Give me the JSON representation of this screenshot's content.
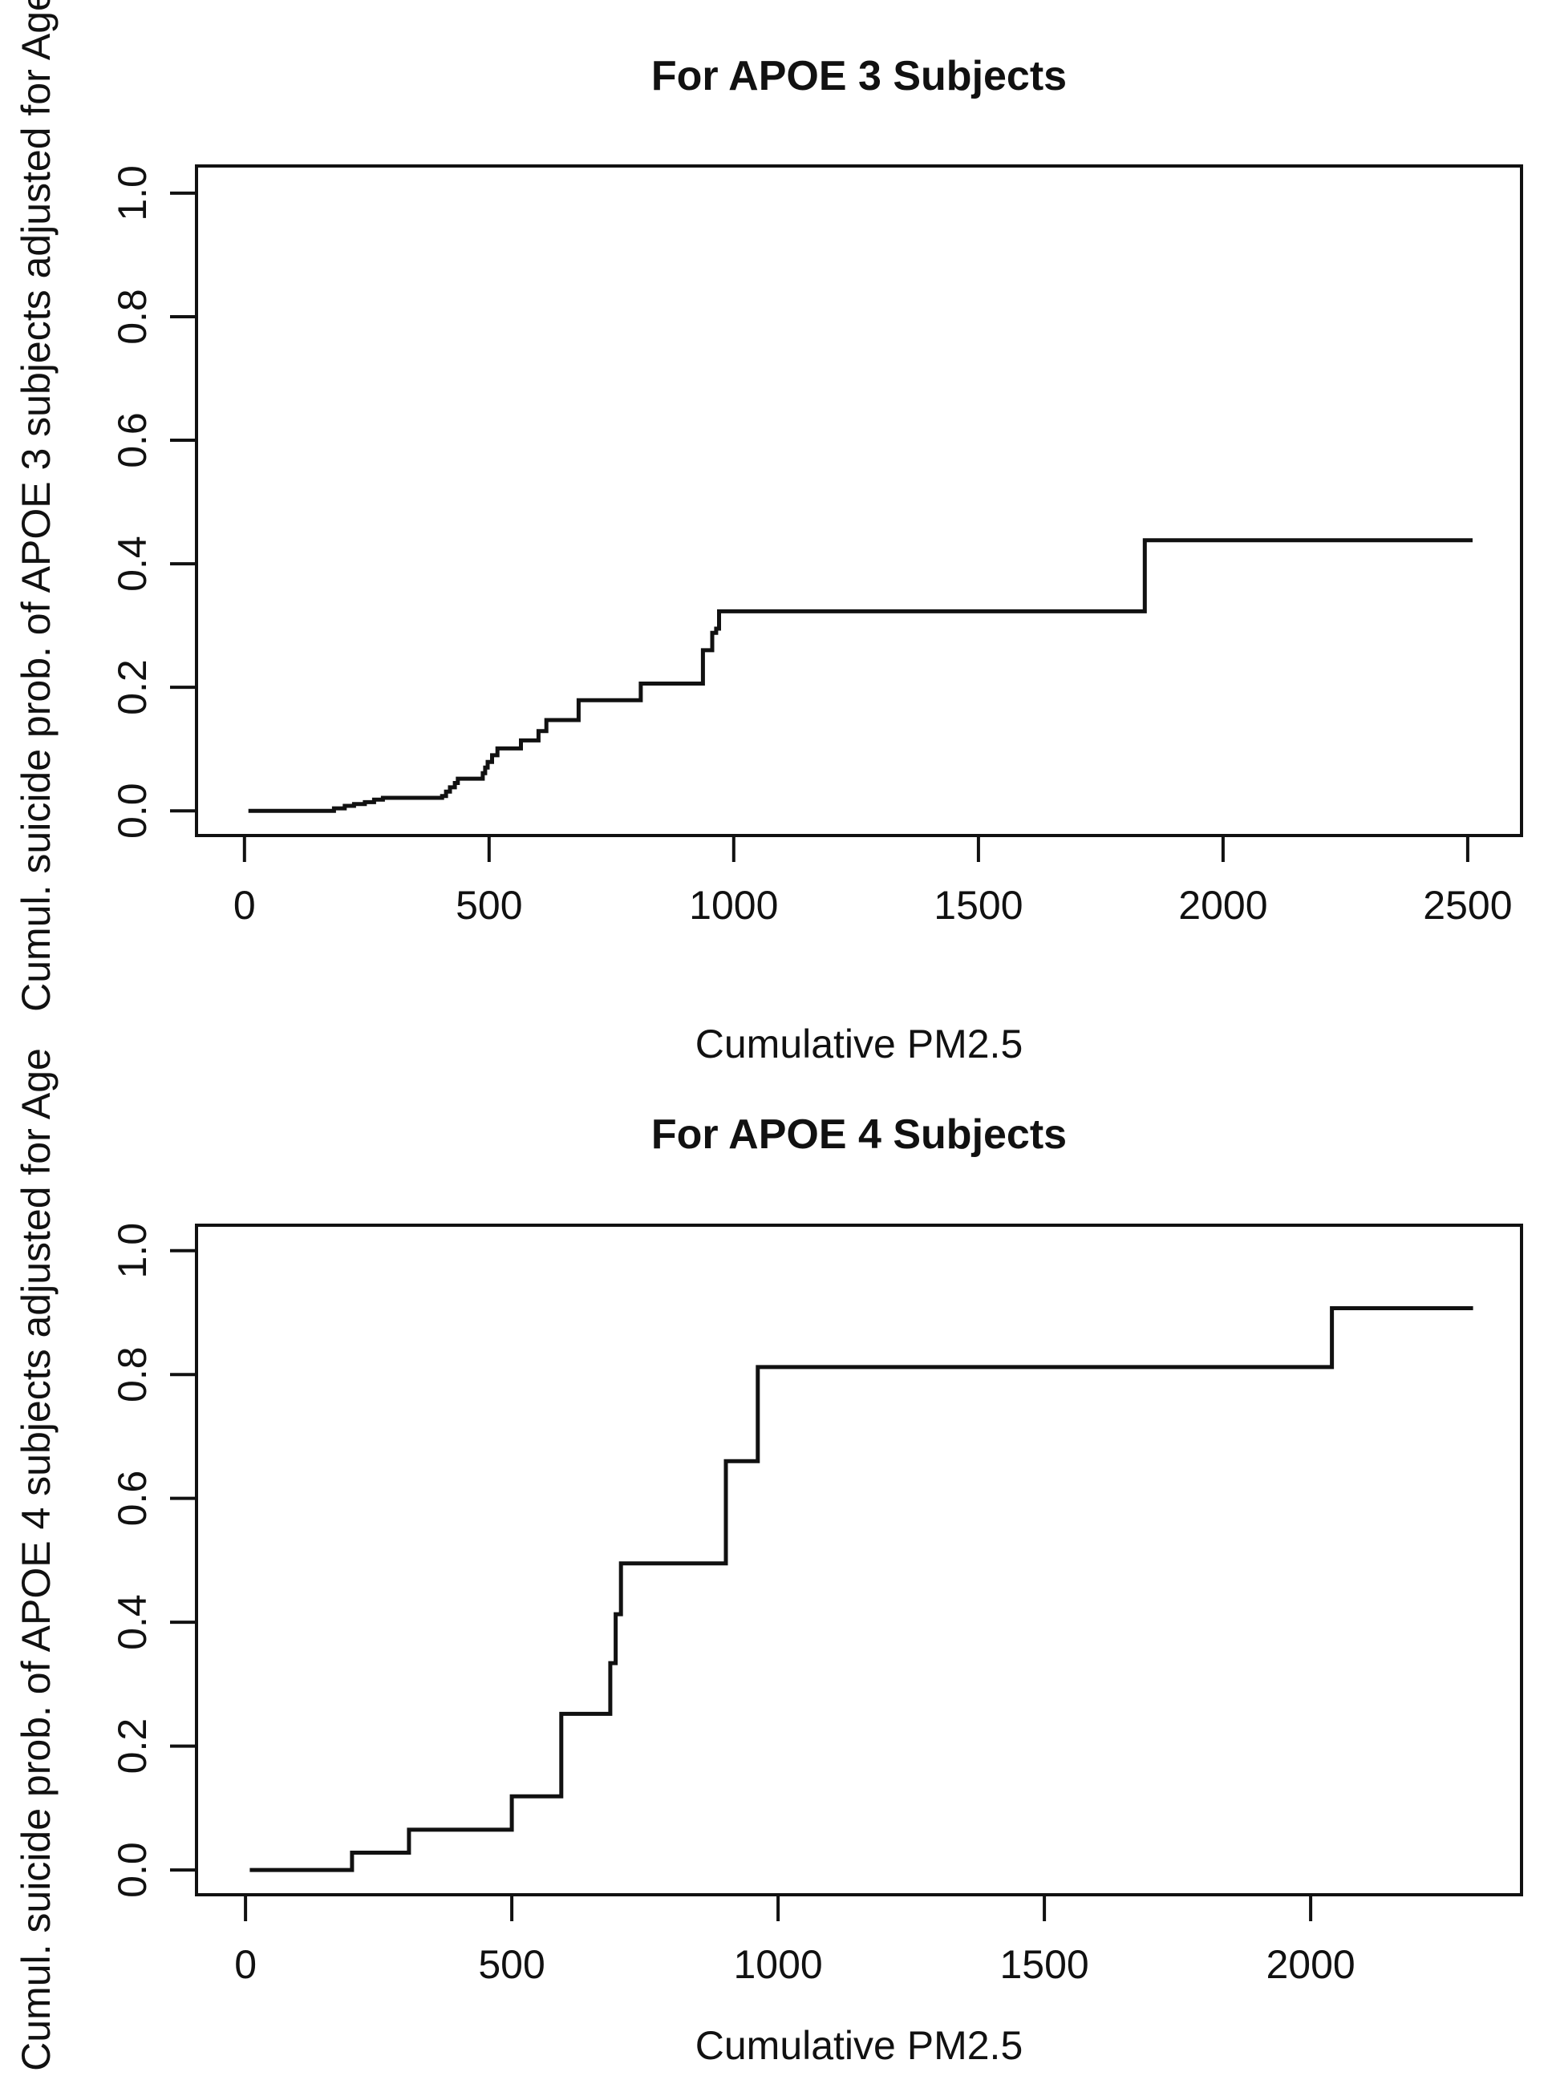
{
  "page": {
    "background": "#ffffff",
    "foreground": "#111111"
  },
  "chart_data": [
    {
      "type": "line",
      "subtype": "step-function",
      "title": "For APOE 3 Subjects",
      "xlabel": "Cumulative PM2.5",
      "ylabel": "Cumul. suicide prob. of APOE 3 subjects adjusted for Age",
      "line_color": "#111111",
      "grid": false,
      "legend": "none",
      "xlim": [
        -98,
        2610
      ],
      "ylim": [
        -0.04,
        1.044
      ],
      "x_ticks": [
        0,
        500,
        1000,
        1500,
        2000,
        2500
      ],
      "x_tick_labels": [
        "0",
        "500",
        "1000",
        "1500",
        "2000",
        "2500"
      ],
      "y_ticks": [
        0.0,
        0.2,
        0.4,
        0.6,
        0.8,
        1.0
      ],
      "y_tick_labels": [
        "0.0",
        "0.2",
        "0.4",
        "0.6",
        "0.8",
        "1.0"
      ],
      "step_points": [
        [
          8,
          0.0
        ],
        [
          183,
          0.004
        ],
        [
          205,
          0.008
        ],
        [
          224,
          0.011
        ],
        [
          246,
          0.014
        ],
        [
          265,
          0.018
        ],
        [
          283,
          0.021
        ],
        [
          404,
          0.024
        ],
        [
          412,
          0.031
        ],
        [
          420,
          0.038
        ],
        [
          430,
          0.045
        ],
        [
          436,
          0.052
        ],
        [
          487,
          0.061
        ],
        [
          492,
          0.07
        ],
        [
          497,
          0.079
        ],
        [
          506,
          0.09
        ],
        [
          517,
          0.101
        ],
        [
          565,
          0.114
        ],
        [
          601,
          0.129
        ],
        [
          617,
          0.147
        ],
        [
          683,
          0.179
        ],
        [
          810,
          0.206
        ],
        [
          937,
          0.26
        ],
        [
          956,
          0.288
        ],
        [
          964,
          0.295
        ],
        [
          970,
          0.323
        ],
        [
          1840,
          0.438
        ]
      ],
      "x_end": 2510
    },
    {
      "type": "line",
      "subtype": "step-function",
      "title": "For APOE 4 Subjects",
      "xlabel": "Cumulative PM2.5",
      "ylabel": "Cumul. suicide prob. of APOE 4 subjects adjusted for Age",
      "line_color": "#111111",
      "grid": false,
      "legend": "none",
      "xlim": [
        -92,
        2396
      ],
      "ylim": [
        -0.04,
        1.041
      ],
      "x_ticks": [
        0,
        500,
        1000,
        1500,
        2000
      ],
      "x_tick_labels": [
        "0",
        "500",
        "1000",
        "1500",
        "2000"
      ],
      "y_ticks": [
        0.0,
        0.2,
        0.4,
        0.6,
        0.8,
        1.0
      ],
      "y_tick_labels": [
        "0.0",
        "0.2",
        "0.4",
        "0.6",
        "0.8",
        "1.0"
      ],
      "step_points": [
        [
          8,
          0.0
        ],
        [
          200,
          0.028
        ],
        [
          307,
          0.065
        ],
        [
          500,
          0.119
        ],
        [
          593,
          0.252
        ],
        [
          685,
          0.334
        ],
        [
          695,
          0.413
        ],
        [
          705,
          0.495
        ],
        [
          902,
          0.66
        ],
        [
          962,
          0.812
        ],
        [
          2040,
          0.907
        ]
      ],
      "x_end": 2305
    }
  ]
}
